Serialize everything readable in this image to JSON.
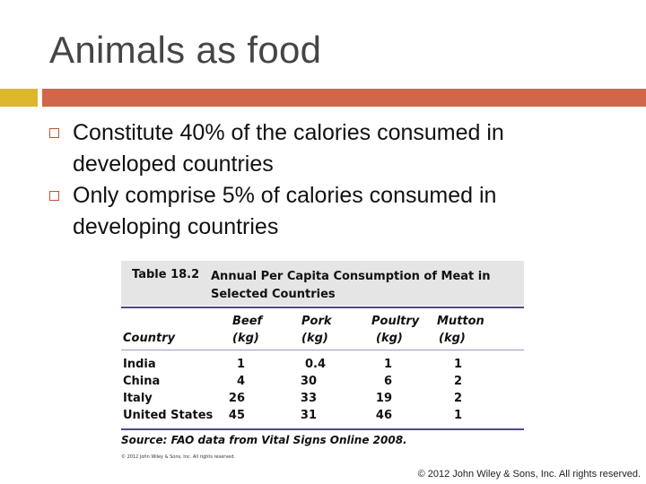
{
  "slide": {
    "title": "Animals as food",
    "bullets": [
      "Constitute 40% of the calories consumed in developed countries",
      "Only comprise 5% of calories consumed in developing countries"
    ],
    "footer": "© 2012 John Wiley & Sons, Inc. All rights reserved.",
    "accent_colors": {
      "left_bar": "#ddb82e",
      "right_bar": "#d0674a"
    }
  },
  "table": {
    "label": "Table 18.2",
    "title": "Annual Per Capita Consumption of Meat in Selected Countries",
    "columns": [
      {
        "name": "Country",
        "unit": ""
      },
      {
        "name": "Beef",
        "unit": "(kg)"
      },
      {
        "name": "Pork",
        "unit": "(kg)"
      },
      {
        "name": "Poultry",
        "unit": "(kg)"
      },
      {
        "name": "Mutton",
        "unit": "(kg)"
      }
    ],
    "rows": [
      [
        "India",
        "1",
        "0.4",
        "1",
        "1"
      ],
      [
        "China",
        "4",
        "30",
        "6",
        "2"
      ],
      [
        "Italy",
        "26",
        "33",
        "19",
        "2"
      ],
      [
        "United States",
        "45",
        "31",
        "46",
        "1"
      ]
    ],
    "source": "Source: FAO data from Vital Signs Online 2008.",
    "copyright": "© 2012 John Wiley & Sons, Inc. All rights reserved."
  }
}
